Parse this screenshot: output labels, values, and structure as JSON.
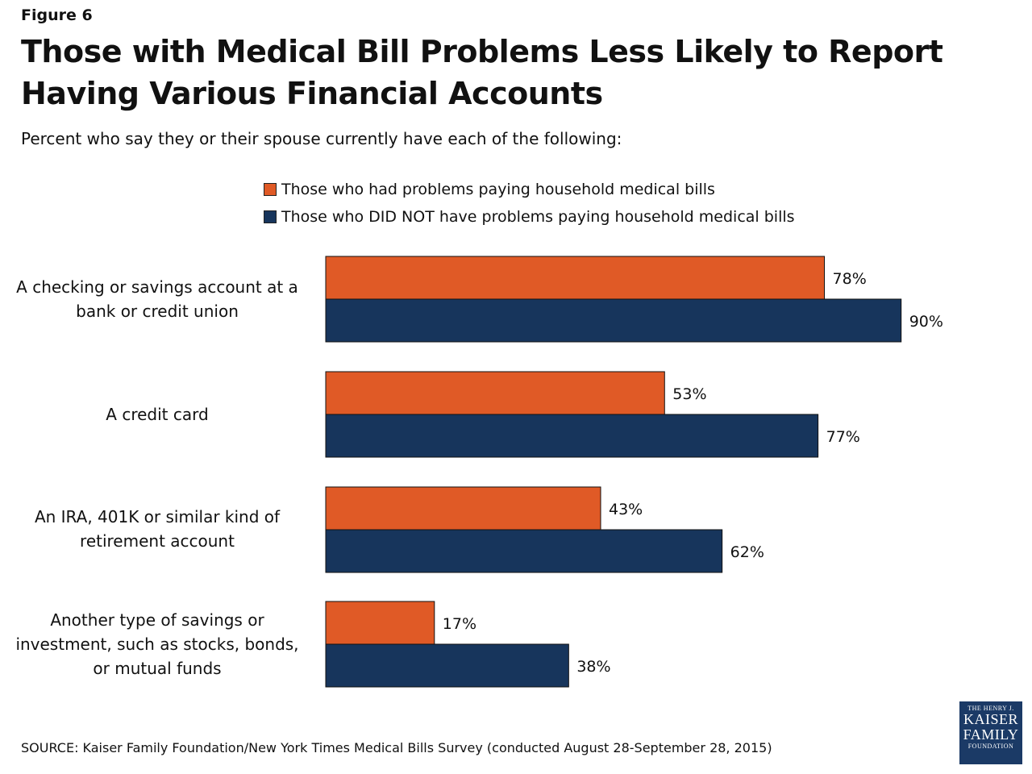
{
  "figure_label": "Figure 6",
  "colors": {
    "series1": "#e05a26",
    "series2": "#17355c"
  },
  "chart_data": {
    "type": "bar",
    "orientation": "horizontal",
    "title": "Those with Medical Bill Problems Less Likely to Report Having Various Financial Accounts",
    "subtitle": "Percent who say they or their spouse currently have each of the following:",
    "categories": [
      "A checking or savings account at a bank or credit union",
      "A credit card",
      "An IRA, 401K or similar kind of retirement account",
      "Another type of savings or investment, such as stocks, bonds, or mutual funds"
    ],
    "series": [
      {
        "name": "Those who had problems paying household medical bills",
        "values": [
          78,
          53,
          43,
          17
        ]
      },
      {
        "name": "Those who DID NOT have problems paying household medical bills",
        "values": [
          90,
          77,
          62,
          38
        ]
      }
    ],
    "value_suffix": "%",
    "xlim": [
      0,
      100
    ],
    "legend": "top-center",
    "grid": false
  },
  "source": "SOURCE: Kaiser Family Foundation/New York Times Medical Bills Survey (conducted August 28-September 28, 2015)",
  "logo": {
    "line1": "THE HENRY J.",
    "line2": "KAISER",
    "line3": "FAMILY",
    "line4": "FOUNDATION"
  }
}
